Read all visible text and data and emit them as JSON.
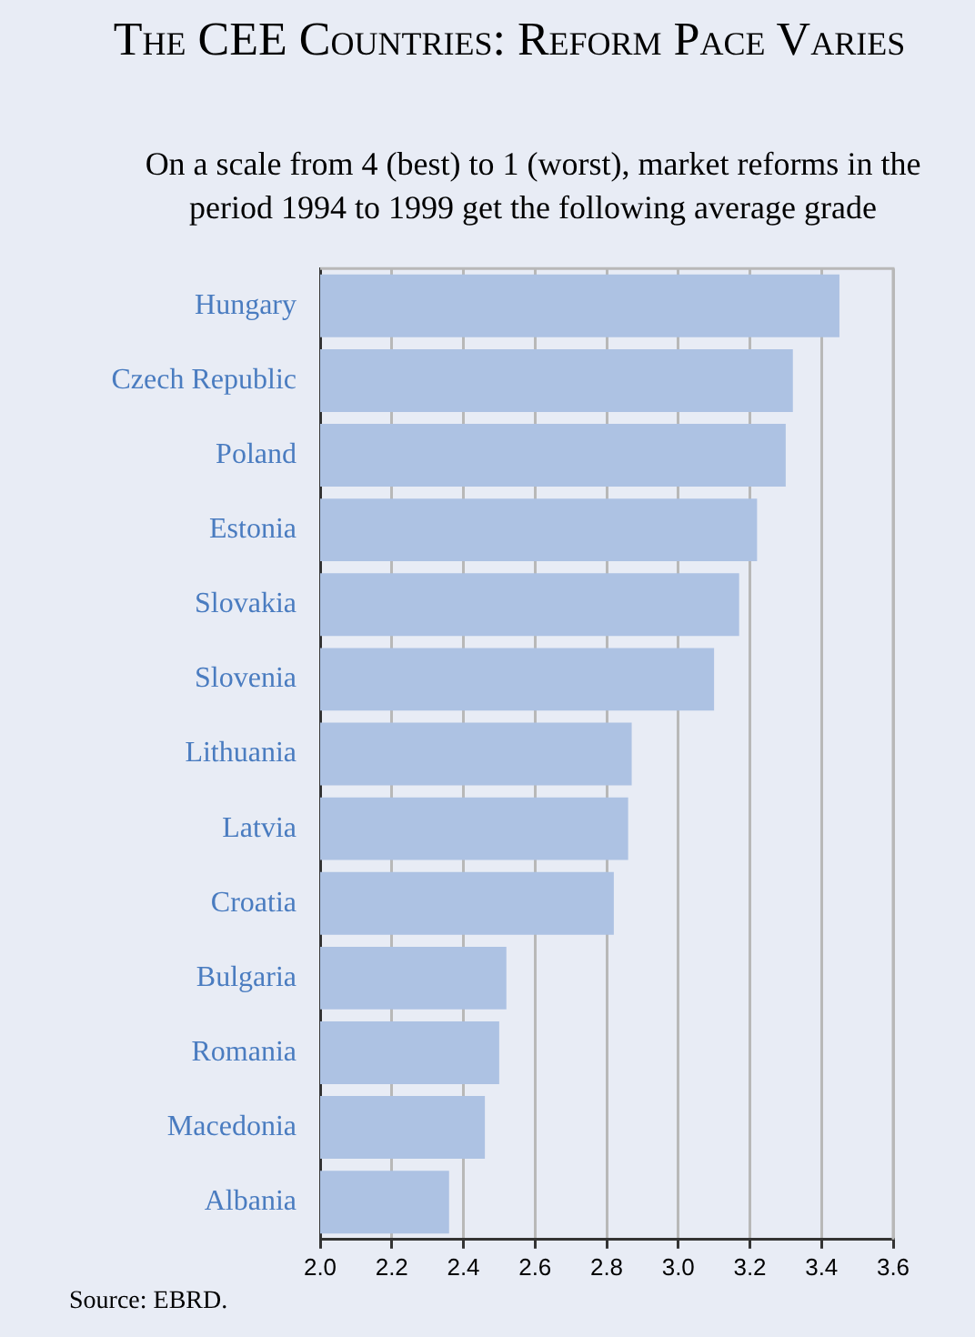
{
  "chart_data": {
    "type": "bar",
    "orientation": "horizontal",
    "title": "The CEE Countries: Reform Pace Varies",
    "subtitle": "On a scale from 4 (best) to 1 (worst), market reforms in the period 1994 to 1999 get the following average grade",
    "categories": [
      "Hungary",
      "Czech Republic",
      "Poland",
      "Estonia",
      "Slovakia",
      "Slovenia",
      "Lithuania",
      "Latvia",
      "Croatia",
      "Bulgaria",
      "Romania",
      "Macedonia",
      "Albania"
    ],
    "values": [
      3.45,
      3.32,
      3.3,
      3.22,
      3.17,
      3.1,
      2.87,
      2.86,
      2.82,
      2.52,
      2.5,
      2.46,
      2.36
    ],
    "color": "#adc2e3",
    "xlim": [
      2.0,
      3.6
    ],
    "xticks": [
      {
        "value": 2.0,
        "label": "2.0"
      },
      {
        "value": 2.2,
        "label": "2.2"
      },
      {
        "value": 2.4,
        "label": "2.4"
      },
      {
        "value": 2.6,
        "label": "2.6"
      },
      {
        "value": 2.8,
        "label": "2.8"
      },
      {
        "value": 3.0,
        "label": "3.0"
      },
      {
        "value": 3.2,
        "label": "3.2"
      },
      {
        "value": 3.4,
        "label": "3.4"
      },
      {
        "value": 3.6,
        "label": "3.6"
      }
    ],
    "grid": "x",
    "annotations": [
      "Source: EBRD."
    ]
  }
}
